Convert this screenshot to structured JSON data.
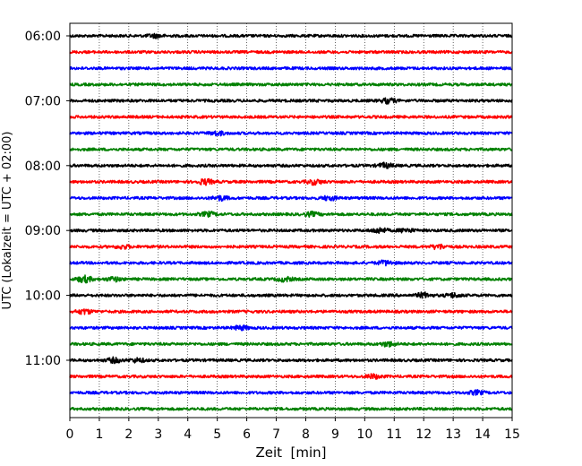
{
  "chart_data": {
    "type": "line",
    "title": "",
    "xlabel": "Zeit  [min]",
    "ylabel": "UTC (Lokalzeit = UTC + 02:00)",
    "xlim": [
      0,
      15
    ],
    "x_ticks": [
      "0",
      "1",
      "2",
      "3",
      "4",
      "5",
      "6",
      "7",
      "8",
      "9",
      "10",
      "11",
      "12",
      "13",
      "14",
      "15"
    ],
    "y_ticks": [
      "06:00",
      "07:00",
      "08:00",
      "09:00",
      "10:00",
      "11:00"
    ],
    "grid": "vertical dotted lines at each minute",
    "series_colors": [
      "#000000",
      "#ff0000",
      "#0000ff",
      "#008000"
    ],
    "trace_count": 24,
    "trace_interval_minutes": 15,
    "first_trace_time": "06:00",
    "last_trace_time": "11:45",
    "events": [
      {
        "trace": 0,
        "minute": 2.9,
        "amp": 1.3
      },
      {
        "trace": 4,
        "minute": 10.8,
        "amp": 1.8
      },
      {
        "trace": 6,
        "minute": 5.0,
        "amp": 1.5
      },
      {
        "trace": 8,
        "minute": 10.7,
        "amp": 1.7
      },
      {
        "trace": 9,
        "minute": 4.6,
        "amp": 2.0
      },
      {
        "trace": 9,
        "minute": 8.3,
        "amp": 1.8
      },
      {
        "trace": 10,
        "minute": 5.1,
        "amp": 1.6
      },
      {
        "trace": 10,
        "minute": 8.8,
        "amp": 1.5
      },
      {
        "trace": 11,
        "minute": 4.7,
        "amp": 1.6
      },
      {
        "trace": 11,
        "minute": 8.2,
        "amp": 1.4
      },
      {
        "trace": 12,
        "minute": 10.5,
        "amp": 2.0
      },
      {
        "trace": 12,
        "minute": 11.4,
        "amp": 1.4
      },
      {
        "trace": 13,
        "minute": 1.8,
        "amp": 1.3
      },
      {
        "trace": 13,
        "minute": 12.5,
        "amp": 1.6
      },
      {
        "trace": 14,
        "minute": 10.7,
        "amp": 1.7
      },
      {
        "trace": 15,
        "minute": 0.5,
        "amp": 2.4
      },
      {
        "trace": 15,
        "minute": 1.5,
        "amp": 1.5
      },
      {
        "trace": 15,
        "minute": 7.3,
        "amp": 1.6
      },
      {
        "trace": 16,
        "minute": 12.0,
        "amp": 1.8
      },
      {
        "trace": 16,
        "minute": 13.0,
        "amp": 1.5
      },
      {
        "trace": 17,
        "minute": 0.5,
        "amp": 1.7
      },
      {
        "trace": 18,
        "minute": 5.8,
        "amp": 1.5
      },
      {
        "trace": 19,
        "minute": 10.8,
        "amp": 1.7
      },
      {
        "trace": 20,
        "minute": 1.5,
        "amp": 1.7
      },
      {
        "trace": 20,
        "minute": 2.3,
        "amp": 1.4
      },
      {
        "trace": 21,
        "minute": 10.3,
        "amp": 1.5
      },
      {
        "trace": 22,
        "minute": 13.8,
        "amp": 1.4
      }
    ]
  }
}
